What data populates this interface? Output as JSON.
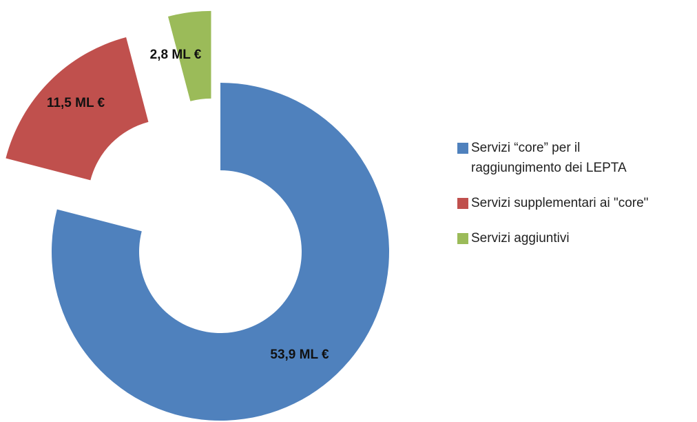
{
  "chart_data": {
    "type": "pie",
    "categories": [
      "Servizi “core” per il raggiungimento dei LEPTA",
      "Servizi supplementari ai \"core\"",
      "Servizi aggiuntivi"
    ],
    "values": [
      53.9,
      11.5,
      2.8
    ],
    "value_labels": [
      "53,9 ML €",
      "11,5 ML €",
      "2,8 ML €"
    ],
    "colors": [
      "#4f81bd",
      "#c0504d",
      "#9bbb59"
    ],
    "legend": "right"
  }
}
